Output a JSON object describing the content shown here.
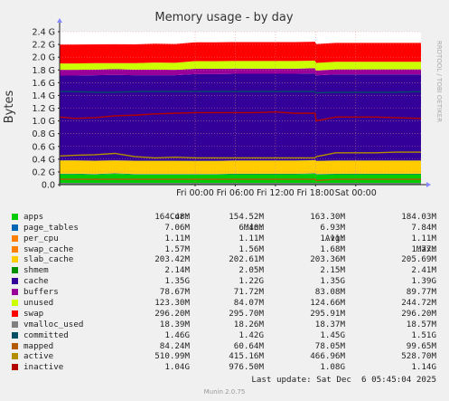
{
  "chart_data": {
    "type": "area",
    "title": "Memory usage - by day",
    "ylabel": "Bytes",
    "side_label": "RRDTOOL / TOBI OETIKER",
    "ylim": [
      0,
      2.4
    ],
    "y_ticks": [
      {
        "v": 0.0,
        "label": "0.0"
      },
      {
        "v": 0.2,
        "label": "0.2 G"
      },
      {
        "v": 0.4,
        "label": "0.4 G"
      },
      {
        "v": 0.6,
        "label": "0.6 G"
      },
      {
        "v": 0.8,
        "label": "0.8 G"
      },
      {
        "v": 1.0,
        "label": "1.0 G"
      },
      {
        "v": 1.2,
        "label": "1.2 G"
      },
      {
        "v": 1.4,
        "label": "1.4 G"
      },
      {
        "v": 1.6,
        "label": "1.6 G"
      },
      {
        "v": 1.8,
        "label": "1.8 G"
      },
      {
        "v": 2.0,
        "label": "2.0 G"
      },
      {
        "v": 2.2,
        "label": "2.2 G"
      },
      {
        "v": 2.4,
        "label": "2.4 G"
      }
    ],
    "x_range_hours": [
      -20.25,
      33.75
    ],
    "x_ticks": [
      {
        "h": 0,
        "label": "Fri 00:00"
      },
      {
        "h": 6,
        "label": "Fri 06:00"
      },
      {
        "h": 12,
        "label": "Fri 12:00"
      },
      {
        "h": 18,
        "label": "Fri 18:00"
      },
      {
        "h": 24,
        "label": "Sat 00:00"
      }
    ],
    "x_tick_note": "x positions are hours relative to Fri 00:00",
    "x_sample_hours": [
      -20.25,
      -18,
      -15,
      -12,
      -9,
      -6,
      -3,
      0,
      3,
      6,
      9,
      12,
      15,
      17.9,
      18.1,
      21,
      24,
      27,
      30,
      33.75
    ],
    "stack_series": [
      {
        "name": "apps",
        "color": "#00cc00",
        "values": [
          0.165,
          0.165,
          0.16,
          0.17,
          0.16,
          0.16,
          0.16,
          0.16,
          0.16,
          0.164,
          0.164,
          0.164,
          0.164,
          0.17,
          0.16,
          0.164,
          0.164,
          0.164,
          0.164,
          0.164
        ]
      },
      {
        "name": "page_tables",
        "color": "#0066b3",
        "values": [
          0.007,
          0.007,
          0.007,
          0.007,
          0.007,
          0.007,
          0.007,
          0.007,
          0.007,
          0.007,
          0.007,
          0.007,
          0.007,
          0.007,
          0.007,
          0.007,
          0.007,
          0.007,
          0.007,
          0.007
        ]
      },
      {
        "name": "per_cpu",
        "color": "#ff8000",
        "values": [
          0.001,
          0.001,
          0.001,
          0.001,
          0.001,
          0.001,
          0.001,
          0.001,
          0.001,
          0.001,
          0.001,
          0.001,
          0.001,
          0.001,
          0.001,
          0.001,
          0.001,
          0.001,
          0.001,
          0.001
        ]
      },
      {
        "name": "swap_cache",
        "color": "#ffcc00",
        "values": [
          0.002,
          0.002,
          0.002,
          0.002,
          0.002,
          0.002,
          0.002,
          0.002,
          0.002,
          0.002,
          0.002,
          0.002,
          0.002,
          0.002,
          0.002,
          0.002,
          0.002,
          0.002,
          0.002,
          0.002
        ]
      },
      {
        "name": "slab_cache",
        "color": "#ffcc00",
        "values": [
          0.205,
          0.205,
          0.204,
          0.2,
          0.205,
          0.205,
          0.204,
          0.203,
          0.203,
          0.203,
          0.203,
          0.203,
          0.203,
          0.203,
          0.203,
          0.203,
          0.203,
          0.203,
          0.203,
          0.203
        ]
      },
      {
        "name": "shmem",
        "color": "#008f00",
        "values": [
          0.002,
          0.002,
          0.002,
          0.002,
          0.002,
          0.002,
          0.002,
          0.002,
          0.002,
          0.002,
          0.002,
          0.002,
          0.002,
          0.002,
          0.002,
          0.002,
          0.002,
          0.002,
          0.002,
          0.002
        ]
      },
      {
        "name": "cache",
        "color": "#330099",
        "values": [
          1.33,
          1.33,
          1.34,
          1.34,
          1.34,
          1.34,
          1.34,
          1.36,
          1.36,
          1.36,
          1.36,
          1.36,
          1.36,
          1.36,
          1.34,
          1.35,
          1.35,
          1.35,
          1.35,
          1.35
        ]
      },
      {
        "name": "buffers",
        "color": "#990099",
        "values": [
          0.09,
          0.09,
          0.09,
          0.09,
          0.089,
          0.088,
          0.085,
          0.083,
          0.082,
          0.082,
          0.081,
          0.081,
          0.081,
          0.081,
          0.075,
          0.079,
          0.079,
          0.079,
          0.079,
          0.079
        ]
      },
      {
        "name": "unused",
        "color": "#ccff00",
        "values": [
          0.1,
          0.1,
          0.1,
          0.095,
          0.1,
          0.11,
          0.11,
          0.12,
          0.12,
          0.12,
          0.12,
          0.12,
          0.12,
          0.12,
          0.12,
          0.12,
          0.12,
          0.12,
          0.12,
          0.12
        ]
      },
      {
        "name": "swap",
        "color": "#ff0000",
        "values": [
          0.296,
          0.296,
          0.296,
          0.296,
          0.296,
          0.296,
          0.296,
          0.296,
          0.296,
          0.296,
          0.296,
          0.296,
          0.296,
          0.296,
          0.296,
          0.296,
          0.296,
          0.296,
          0.296,
          0.296
        ]
      }
    ],
    "line_series": [
      {
        "name": "vmalloc_used",
        "color": "#808080",
        "values": [
          0.018,
          0.018,
          0.018,
          0.018,
          0.018,
          0.018,
          0.018,
          0.018,
          0.018,
          0.018,
          0.018,
          0.018,
          0.018,
          0.018,
          0.018,
          0.018,
          0.018,
          0.018,
          0.018,
          0.018
        ]
      },
      {
        "name": "committed",
        "color": "#004d66",
        "values": [
          1.46,
          1.46,
          1.45,
          1.45,
          1.46,
          1.46,
          1.46,
          1.46,
          1.46,
          1.46,
          1.46,
          1.46,
          1.46,
          1.46,
          1.44,
          1.45,
          1.45,
          1.45,
          1.45,
          1.46
        ]
      },
      {
        "name": "mapped",
        "color": "#b35a00",
        "values": [
          0.085,
          0.085,
          0.085,
          0.085,
          0.085,
          0.085,
          0.084,
          0.084,
          0.084,
          0.084,
          0.084,
          0.084,
          0.084,
          0.084,
          0.065,
          0.084,
          0.084,
          0.084,
          0.084,
          0.084
        ]
      },
      {
        "name": "active",
        "color": "#b38f00",
        "values": [
          0.45,
          0.46,
          0.47,
          0.49,
          0.44,
          0.42,
          0.43,
          0.42,
          0.42,
          0.42,
          0.42,
          0.42,
          0.42,
          0.42,
          0.44,
          0.5,
          0.5,
          0.5,
          0.51,
          0.51
        ]
      },
      {
        "name": "inactive",
        "color": "#b30000",
        "values": [
          1.06,
          1.04,
          1.05,
          1.08,
          1.09,
          1.11,
          1.12,
          1.13,
          1.13,
          1.13,
          1.13,
          1.14,
          1.12,
          1.12,
          1.0,
          1.06,
          1.06,
          1.06,
          1.05,
          1.04
        ]
      }
    ]
  },
  "legend": {
    "headers": [
      "Cur:",
      "Min:",
      "Avg:",
      "Max:"
    ],
    "rows": [
      {
        "name": "apps",
        "color": "#00cc00",
        "cur": "164.48M",
        "min": "154.52M",
        "avg": "163.30M",
        "max": "184.03M"
      },
      {
        "name": "page_tables",
        "color": "#0066b3",
        "cur": "7.06M",
        "min": "6.40M",
        "avg": "6.93M",
        "max": "7.84M"
      },
      {
        "name": "per_cpu",
        "color": "#ff8000",
        "cur": "1.11M",
        "min": "1.11M",
        "avg": "1.11M",
        "max": "1.11M"
      },
      {
        "name": "swap_cache",
        "color": "#ff8000",
        "cur": "1.57M",
        "min": "1.56M",
        "avg": "1.68M",
        "max": "1.77M"
      },
      {
        "name": "slab_cache",
        "color": "#ffcc00",
        "cur": "203.42M",
        "min": "202.61M",
        "avg": "203.36M",
        "max": "205.69M"
      },
      {
        "name": "shmem",
        "color": "#008f00",
        "cur": "2.14M",
        "min": "2.05M",
        "avg": "2.15M",
        "max": "2.41M"
      },
      {
        "name": "cache",
        "color": "#330099",
        "cur": "1.35G",
        "min": "1.22G",
        "avg": "1.35G",
        "max": "1.39G"
      },
      {
        "name": "buffers",
        "color": "#990099",
        "cur": "78.67M",
        "min": "71.72M",
        "avg": "83.08M",
        "max": "89.77M"
      },
      {
        "name": "unused",
        "color": "#ccff00",
        "cur": "123.30M",
        "min": "84.07M",
        "avg": "124.66M",
        "max": "244.72M"
      },
      {
        "name": "swap",
        "color": "#ff0000",
        "cur": "296.20M",
        "min": "295.70M",
        "avg": "295.91M",
        "max": "296.20M"
      },
      {
        "name": "vmalloc_used",
        "color": "#808080",
        "cur": "18.39M",
        "min": "18.26M",
        "avg": "18.37M",
        "max": "18.57M"
      },
      {
        "name": "committed",
        "color": "#004d66",
        "cur": "1.46G",
        "min": "1.42G",
        "avg": "1.45G",
        "max": "1.51G"
      },
      {
        "name": "mapped",
        "color": "#b35a00",
        "cur": "84.24M",
        "min": "60.64M",
        "avg": "78.05M",
        "max": "99.65M"
      },
      {
        "name": "active",
        "color": "#b38f00",
        "cur": "510.99M",
        "min": "415.16M",
        "avg": "466.96M",
        "max": "528.70M"
      },
      {
        "name": "inactive",
        "color": "#b30000",
        "cur": "1.04G",
        "min": "976.50M",
        "avg": "1.08G",
        "max": "1.14G"
      }
    ]
  },
  "footer": {
    "last_update": "Last update: Sat Dec  6 05:45:04 2025"
  },
  "credit": "Munin 2.0.75"
}
